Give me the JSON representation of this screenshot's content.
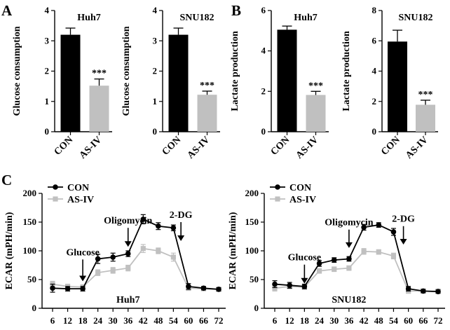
{
  "panels": {
    "a_label": "A",
    "b_label": "B",
    "c_label": "C"
  },
  "chart_data": [
    {
      "type": "bar",
      "id": "glucose-huh7",
      "title": "Huh7",
      "ylabel": "Glucose consumption",
      "categories": [
        "CON",
        "AS-IV"
      ],
      "values": [
        3.2,
        1.52
      ],
      "errors": [
        0.22,
        0.22
      ],
      "colors": [
        "#000000",
        "#c0c0c0"
      ],
      "significance": [
        "",
        "***"
      ],
      "ylim": [
        0,
        4
      ],
      "yticks": [
        0,
        1,
        2,
        3,
        4
      ]
    },
    {
      "type": "bar",
      "id": "glucose-snu182",
      "title": "SNU182",
      "ylabel": "Glucose consumption",
      "categories": [
        "CON",
        "AS-IV"
      ],
      "values": [
        3.2,
        1.22
      ],
      "errors": [
        0.22,
        0.12
      ],
      "colors": [
        "#000000",
        "#c0c0c0"
      ],
      "significance": [
        "",
        "***"
      ],
      "ylim": [
        0,
        4
      ],
      "yticks": [
        0,
        1,
        2,
        3,
        4
      ]
    },
    {
      "type": "bar",
      "id": "lactate-huh7",
      "title": "Huh7",
      "ylabel": "Lactate production",
      "categories": [
        "CON",
        "AS-IV"
      ],
      "values": [
        5.05,
        1.82
      ],
      "errors": [
        0.18,
        0.18
      ],
      "colors": [
        "#000000",
        "#c0c0c0"
      ],
      "significance": [
        "",
        "***"
      ],
      "ylim": [
        0,
        6
      ],
      "yticks": [
        0,
        2,
        4,
        6
      ]
    },
    {
      "type": "bar",
      "id": "lactate-snu182",
      "title": "SNU182",
      "ylabel": "Lactate production",
      "categories": [
        "CON",
        "AS-IV"
      ],
      "values": [
        5.95,
        1.78
      ],
      "errors": [
        0.75,
        0.3
      ],
      "colors": [
        "#000000",
        "#c0c0c0"
      ],
      "significance": [
        "",
        "***"
      ],
      "ylim": [
        0,
        8
      ],
      "yticks": [
        0,
        2,
        4,
        6,
        8
      ]
    },
    {
      "type": "line",
      "id": "ecar-huh7",
      "annotation": "Huh7",
      "ylabel": "ECAR (mPH/min)",
      "x": [
        6,
        12,
        18,
        24,
        30,
        36,
        42,
        48,
        54,
        60,
        66,
        72
      ],
      "xticks": [
        6,
        12,
        18,
        24,
        30,
        36,
        42,
        48,
        54,
        60,
        66,
        72
      ],
      "ylim": [
        0,
        200
      ],
      "yticks": [
        0,
        50,
        100,
        150,
        200
      ],
      "series": [
        {
          "name": "CON",
          "color": "#000000",
          "values": [
            35,
            34,
            34,
            86,
            89,
            95,
            155,
            143,
            140,
            38,
            35,
            33
          ],
          "errors": [
            7,
            4,
            4,
            8,
            7,
            5,
            8,
            6,
            5,
            5,
            3,
            3
          ]
        },
        {
          "name": "AS-IV",
          "color": "#c0c0c0",
          "values": [
            42,
            38,
            37,
            62,
            66,
            70,
            104,
            100,
            89,
            35,
            34,
            33
          ],
          "errors": [
            5,
            4,
            4,
            5,
            5,
            5,
            7,
            5,
            7,
            4,
            3,
            3
          ]
        }
      ],
      "markers": [
        {
          "label": "Glucose",
          "x": 18,
          "tip": 47,
          "top": 85
        },
        {
          "label": "Oligomycin",
          "x": 36,
          "tip": 107,
          "top": 140
        },
        {
          "label": "2-DG",
          "x": 57,
          "tip": 117,
          "top": 150
        }
      ]
    },
    {
      "type": "line",
      "id": "ecar-snu182",
      "annotation": "SNU182",
      "ylabel": "ECAR (mPH/min)",
      "x": [
        6,
        12,
        18,
        24,
        30,
        36,
        42,
        48,
        54,
        60,
        66,
        72
      ],
      "xticks": [
        6,
        12,
        18,
        24,
        30,
        36,
        42,
        48,
        54,
        60,
        66,
        72
      ],
      "ylim": [
        0,
        200
      ],
      "yticks": [
        0,
        50,
        100,
        150,
        200
      ],
      "series": [
        {
          "name": "CON",
          "color": "#000000",
          "values": [
            42,
            40,
            38,
            78,
            84,
            86,
            141,
            145,
            133,
            34,
            30,
            29
          ],
          "errors": [
            6,
            5,
            4,
            5,
            4,
            4,
            5,
            4,
            6,
            4,
            3,
            3
          ]
        },
        {
          "name": "AS-IV",
          "color": "#c0c0c0",
          "values": [
            35,
            38,
            37,
            65,
            68,
            70,
            99,
            98,
            91,
            30,
            30,
            30
          ],
          "errors": [
            5,
            4,
            4,
            4,
            4,
            4,
            5,
            4,
            5,
            4,
            3,
            3
          ]
        }
      ],
      "markers": [
        {
          "label": "Glucose",
          "x": 18,
          "tip": 43,
          "top": 76
        },
        {
          "label": "Oligomycin",
          "x": 36,
          "tip": 105,
          "top": 137
        },
        {
          "label": "2-DG",
          "x": 58,
          "tip": 111,
          "top": 143
        }
      ]
    }
  ]
}
